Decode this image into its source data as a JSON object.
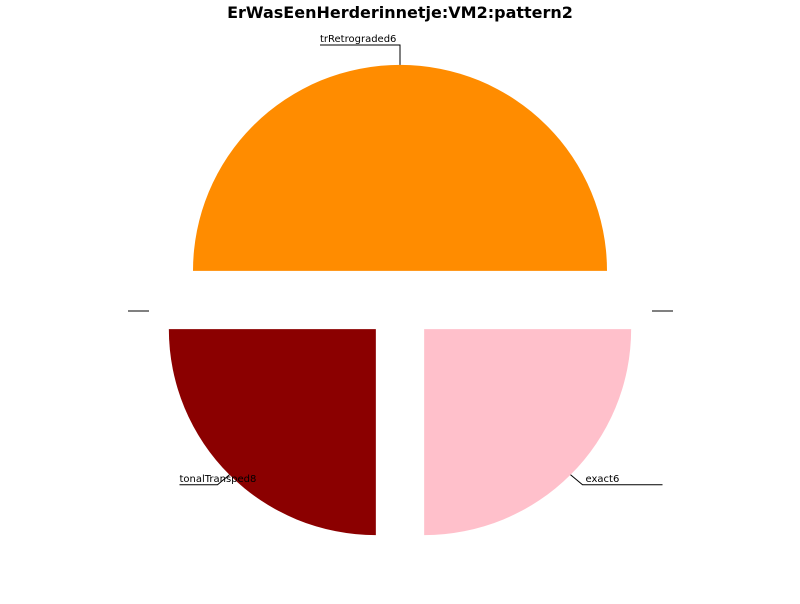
{
  "chart_data": {
    "type": "pie",
    "title": "ErWasEenHerderinnetje:VM2:pattern2",
    "slices": [
      {
        "label": "trRetrograded6",
        "value": 50,
        "color": "#ff8c00",
        "exploded": true
      },
      {
        "label": "tonalTransped8",
        "value": 25,
        "color": "#8b0000",
        "exploded": true
      },
      {
        "label": "exact6",
        "value": 25,
        "color": "#ffc0cb",
        "exploded": true
      }
    ],
    "start_angle_deg": 0,
    "direction": "counterclockwise",
    "legend": "none",
    "grid": false
  }
}
